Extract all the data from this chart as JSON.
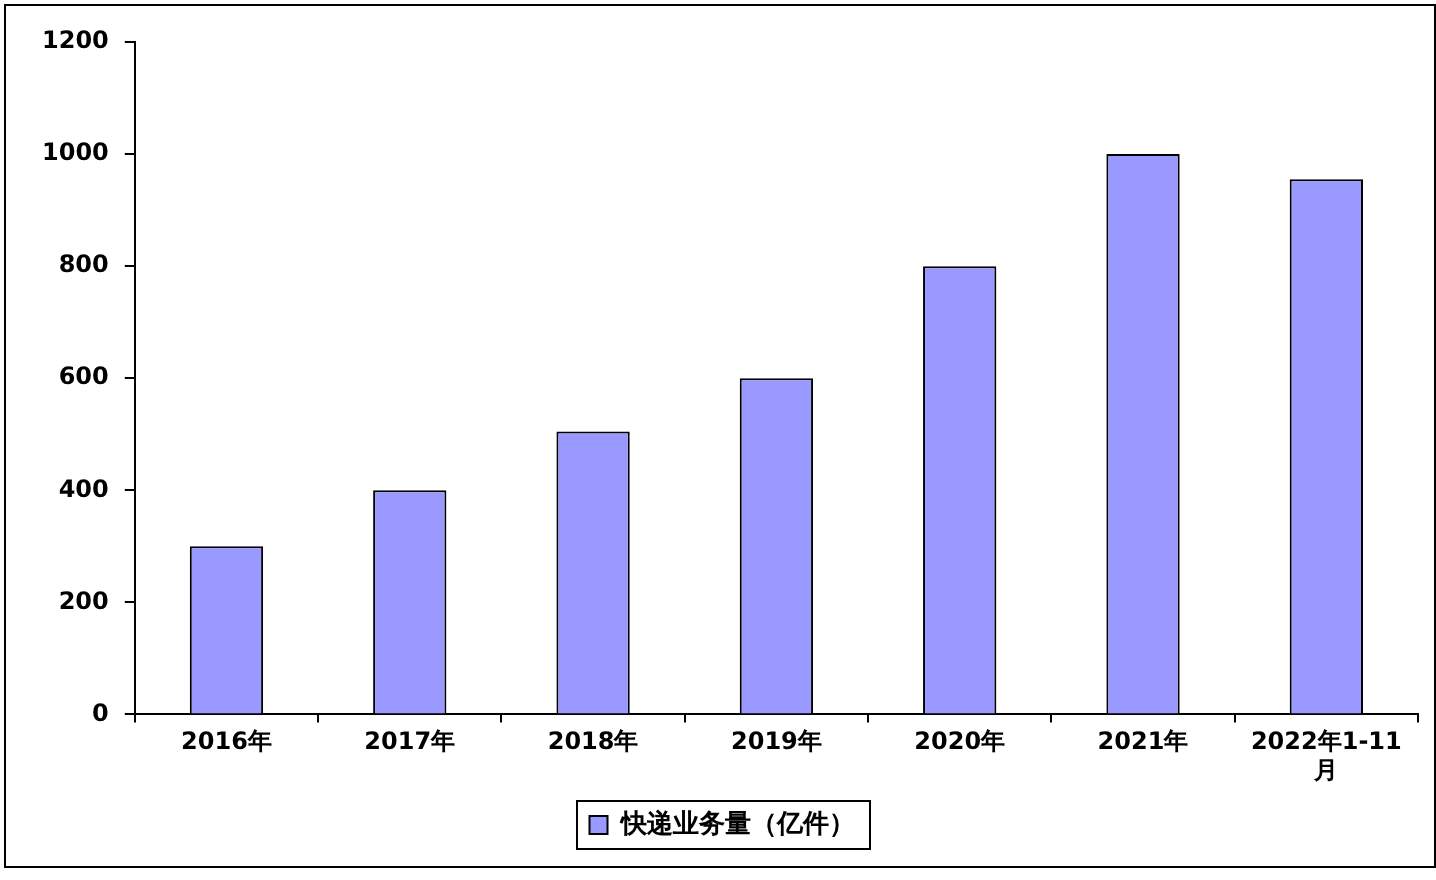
{
  "chart_data": {
    "type": "bar",
    "categories": [
      "2016年",
      "2017年",
      "2018年",
      "2019年",
      "2020年",
      "2021年",
      "2022年1-11月"
    ],
    "series": [
      {
        "name": "快递业务量（亿件）",
        "color": "#9999ff",
        "values": [
          300,
          400,
          505,
          600,
          800,
          1000,
          955
        ]
      }
    ],
    "ylim": [
      0,
      1200
    ],
    "yticks": [
      0,
      200,
      400,
      600,
      800,
      1000,
      1200
    ],
    "grid": false,
    "legend": "bottom"
  }
}
